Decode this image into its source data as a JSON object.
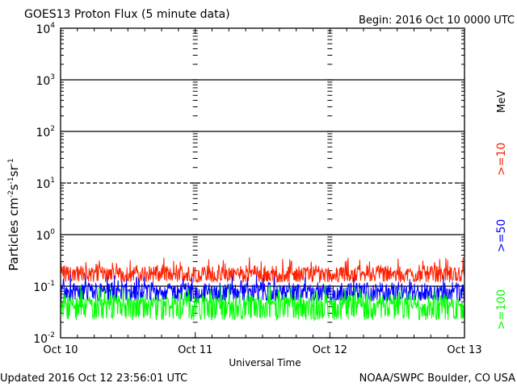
{
  "chart_data": {
    "type": "line",
    "title": "GOES13 Proton Flux (5 minute data)",
    "begin_label": "Begin: 2016 Oct 10 0000 UTC",
    "xlabel": "Universal Time",
    "ylabel": "Particles cm⁻²s⁻¹sr⁻¹",
    "ylabel_parts": {
      "base": "Particles cm",
      "e1": "-2",
      "s": "s",
      "e2": "-1",
      "sr": "sr",
      "e3": "-1"
    },
    "y_scale": "log",
    "ylim": [
      0.01,
      10000
    ],
    "y_ticks": [
      {
        "base": "10",
        "exp": "4",
        "value": 10000
      },
      {
        "base": "10",
        "exp": "3",
        "value": 1000
      },
      {
        "base": "10",
        "exp": "2",
        "value": 100
      },
      {
        "base": "10",
        "exp": "1",
        "value": 10
      },
      {
        "base": "10",
        "exp": "0",
        "value": 1
      },
      {
        "base": "10",
        "exp": "-1",
        "value": 0.1
      },
      {
        "base": "10",
        "exp": "-2",
        "value": 0.01
      }
    ],
    "x_range_days": [
      0,
      3
    ],
    "x_ticks": [
      {
        "label": "Oct 10",
        "day": 0
      },
      {
        "label": "Oct 11",
        "day": 1
      },
      {
        "label": "Oct 12",
        "day": 2
      },
      {
        "label": "Oct 13",
        "day": 3
      }
    ],
    "threshold_lines": [
      {
        "value": 1000,
        "style": "solid"
      },
      {
        "value": 100,
        "style": "solid"
      },
      {
        "value": 10,
        "style": "dashed"
      },
      {
        "value": 1,
        "style": "solid"
      },
      {
        "value": 0.1,
        "style": "solid"
      }
    ],
    "series": [
      {
        "name": ">=10",
        "color": "#ff2000",
        "base": 0.16,
        "low": 0.12,
        "high": 0.38
      },
      {
        "name": ">=50",
        "color": "#0000ff",
        "base": 0.075,
        "low": 0.05,
        "high": 0.17
      },
      {
        "name": ">=100",
        "color": "#00ff00",
        "base": 0.04,
        "low": 0.022,
        "high": 0.11
      }
    ],
    "unit_label": "MeV",
    "updated": "Updated 2016 Oct 12 23:56:01 UTC",
    "credit": "NOAA/SWPC Boulder, CO USA"
  }
}
